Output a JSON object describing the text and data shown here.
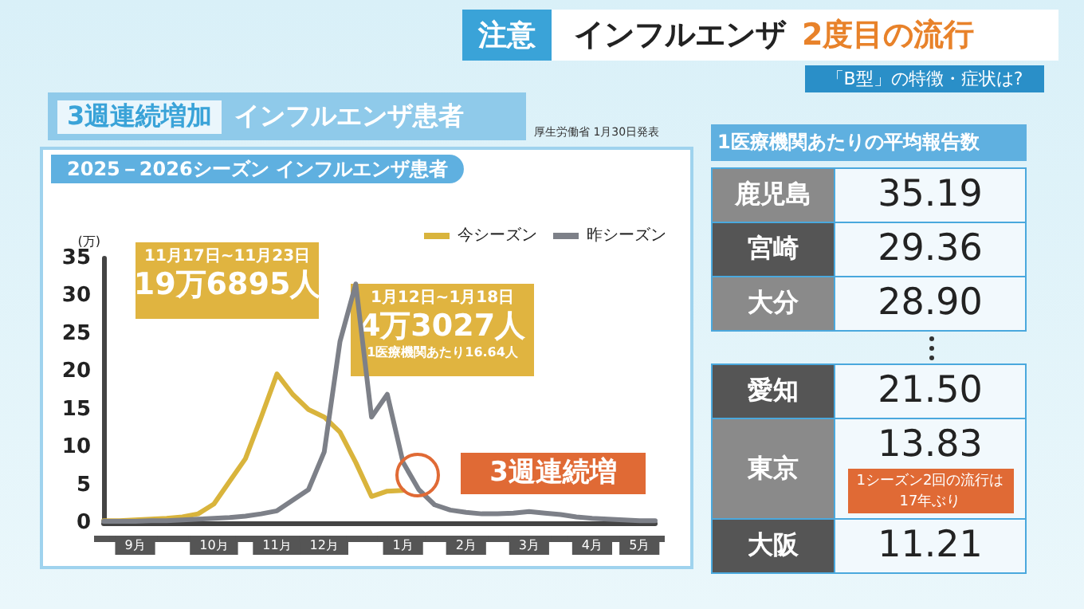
{
  "chart_data": [
    {
      "type": "line",
      "title": "2025－2026シーズン インフルエンザ患者",
      "ylabel": "(万)",
      "categories": [
        null,
        null,
        "9月",
        null,
        null,
        null,
        null,
        "10月",
        null,
        null,
        null,
        "11月",
        null,
        null,
        "12月",
        null,
        null,
        null,
        null,
        "1月",
        null,
        null,
        null,
        "2月",
        null,
        null,
        null,
        "3月",
        null,
        null,
        null,
        "4月",
        null,
        null,
        "5月",
        null
      ],
      "series": [
        {
          "name": "今シーズン",
          "color": "#d9b43c",
          "values": [
            0.3,
            0.3,
            0.4,
            0.5,
            0.6,
            0.8,
            1.2,
            2.5,
            5.5,
            8.5,
            14,
            19.7,
            17,
            15,
            14,
            12,
            8,
            3.5,
            4.2,
            4.3,
            null,
            null,
            null,
            null,
            null,
            null,
            null,
            null,
            null,
            null,
            null,
            null,
            null,
            null,
            null,
            null
          ]
        },
        {
          "name": "昨シーズン",
          "color": "#7d8088",
          "values": [
            0.2,
            0.2,
            0.2,
            0.3,
            0.3,
            0.4,
            0.5,
            0.6,
            0.7,
            0.9,
            1.2,
            1.6,
            3,
            4.4,
            9.4,
            24,
            31.6,
            14,
            17,
            8,
            4.4,
            2.4,
            1.7,
            1.4,
            1.2,
            1.2,
            1.3,
            1.5,
            1.3,
            1.1,
            0.8,
            0.6,
            0.5,
            0.4,
            0.3,
            0.3
          ]
        }
      ],
      "ylim": [
        0,
        35
      ],
      "yticks": [
        0,
        5,
        10,
        15,
        20,
        25,
        30,
        35
      ],
      "grid": false,
      "legend": "top right",
      "marker": "none",
      "line_style": "solid",
      "annotations": [
        "注意",
        "インフルエンザ",
        "2度目の流行",
        "「B型」の特徴・症状は?",
        "3週連続増加",
        "インフルエンザ患者",
        "厚生労働省 1月30日発表",
        "11月17日~11月23日",
        "19万6895人",
        "1月12日~1月18日",
        "4万3027人",
        "1医療機関あたり16.64人",
        "3週連続増"
      ]
    },
    {
      "type": "other",
      "title": "1医療機関あたりの平均報告数",
      "categories": [
        "鹿児島",
        "宮崎",
        "大分",
        "愛知",
        "東京",
        "大阪"
      ],
      "value_labels": [
        "35.19",
        "29.36",
        "28.90",
        "21.50",
        "13.83",
        "11.21"
      ],
      "annotations": [
        {
          "text": "1シーズン2回の流行は17年ぶり",
          "x": "東京"
        }
      ]
    }
  ]
}
